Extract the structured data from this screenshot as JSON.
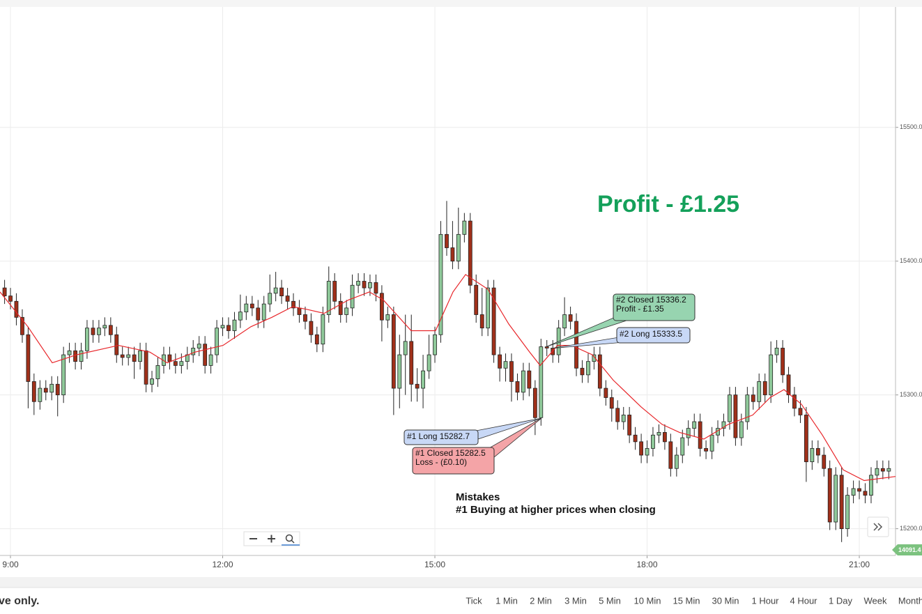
{
  "chart_data": {
    "type": "candlestick",
    "x": [
      8.917,
      9,
      9.083,
      9.167,
      9.25,
      9.333,
      9.417,
      9.5,
      9.583,
      9.667,
      9.75,
      9.833,
      9.917,
      10,
      10.083,
      10.167,
      10.25,
      10.333,
      10.417,
      10.5,
      10.583,
      10.667,
      10.75,
      10.833,
      10.917,
      11,
      11.083,
      11.167,
      11.25,
      11.333,
      11.417,
      11.5,
      11.583,
      11.667,
      11.75,
      11.833,
      11.917,
      12,
      12.083,
      12.167,
      12.25,
      12.333,
      12.417,
      12.5,
      12.583,
      12.667,
      12.75,
      12.833,
      12.917,
      13,
      13.083,
      13.167,
      13.25,
      13.333,
      13.417,
      13.5,
      13.583,
      13.667,
      13.75,
      13.833,
      13.917,
      14,
      14.083,
      14.167,
      14.25,
      14.333,
      14.417,
      14.5,
      14.583,
      14.667,
      14.75,
      14.833,
      14.917,
      15,
      15.083,
      15.167,
      15.25,
      15.333,
      15.417,
      15.5,
      15.583,
      15.667,
      15.75,
      15.833,
      15.917,
      16,
      16.083,
      16.167,
      16.25,
      16.333,
      16.417,
      16.5,
      16.583,
      16.667,
      16.75,
      16.833,
      16.917,
      17,
      17.083,
      17.167,
      17.25,
      17.333,
      17.417,
      17.5,
      17.583,
      17.667,
      17.75,
      17.833,
      17.917,
      18,
      18.083,
      18.167,
      18.25,
      18.333,
      18.417,
      18.5,
      18.583,
      18.667,
      18.75,
      18.833,
      18.917,
      19,
      19.083,
      19.167,
      19.25,
      19.333,
      19.417,
      19.5,
      19.583,
      19.667,
      19.75,
      19.833,
      19.917,
      20,
      20.083,
      20.167,
      20.25,
      20.333,
      20.417,
      20.5,
      20.583,
      20.667,
      20.75,
      20.833,
      20.917,
      21,
      21.083,
      21.167,
      21.25,
      21.333,
      21.417
    ],
    "open": [
      15380,
      15374,
      15370,
      15358,
      15345,
      15310,
      15295,
      15305,
      15302,
      15308,
      15300,
      15330,
      15333,
      15325,
      15333,
      15350,
      15345,
      15350,
      15352,
      15345,
      15330,
      15328,
      15330,
      15325,
      15333,
      15308,
      15312,
      15322,
      15330,
      15325,
      15322,
      15325,
      15330,
      15335,
      15338,
      15322,
      15330,
      15350,
      15352,
      15348,
      15356,
      15362,
      15368,
      15365,
      15356,
      15368,
      15376,
      15380,
      15374,
      15370,
      15365,
      15360,
      15355,
      15345,
      15338,
      15360,
      15385,
      15370,
      15360,
      15365,
      15382,
      15385,
      15380,
      15384,
      15376,
      15356,
      15360,
      15305,
      15330,
      15340,
      15308,
      15305,
      15318,
      15330,
      15345,
      15420,
      15410,
      15400,
      15420,
      15430,
      15382,
      15360,
      15350,
      15380,
      15330,
      15320,
      15325,
      15310,
      15302,
      15318,
      15305,
      15283,
      15336,
      15335,
      15330,
      15350,
      15360,
      15355,
      15320,
      15315,
      15325,
      15330,
      15305,
      15298,
      15290,
      15280,
      15285,
      15270,
      15265,
      15255,
      15260,
      15270,
      15272,
      15265,
      15245,
      15255,
      15268,
      15275,
      15280,
      15260,
      15258,
      15270,
      15275,
      15280,
      15300,
      15268,
      15280,
      15300,
      15295,
      15310,
      15300,
      15330,
      15335,
      15315,
      15300,
      15290,
      15285,
      15250,
      15260,
      15255,
      15245,
      15205,
      15240,
      15200,
      15225,
      15230,
      15228,
      15225,
      15240,
      15245,
      15243
    ],
    "high": [
      15386,
      15380,
      15376,
      15364,
      15351,
      15316,
      15311,
      15311,
      15314,
      15314,
      15336,
      15339,
      15339,
      15339,
      15356,
      15356,
      15356,
      15358,
      15358,
      15351,
      15336,
      15336,
      15336,
      15339,
      15339,
      15318,
      15328,
      15336,
      15336,
      15331,
      15331,
      15336,
      15341,
      15344,
      15344,
      15336,
      15356,
      15358,
      15358,
      15362,
      15375,
      15374,
      15374,
      15371,
      15374,
      15390,
      15392,
      15386,
      15380,
      15376,
      15371,
      15366,
      15361,
      15351,
      15366,
      15396,
      15391,
      15376,
      15371,
      15390,
      15391,
      15391,
      15390,
      15390,
      15382,
      15366,
      15366,
      15345,
      15360,
      15360,
      15320,
      15330,
      15345,
      15351,
      15430,
      15445,
      15430,
      15440,
      15436,
      15436,
      15390,
      15380,
      15386,
      15386,
      15336,
      15331,
      15331,
      15316,
      15324,
      15324,
      15311,
      15342,
      15341,
      15341,
      15356,
      15373,
      15366,
      15361,
      15326,
      15331,
      15336,
      15336,
      15311,
      15304,
      15296,
      15291,
      15291,
      15276,
      15271,
      15266,
      15276,
      15278,
      15278,
      15271,
      15261,
      15274,
      15281,
      15286,
      15286,
      15266,
      15276,
      15281,
      15286,
      15306,
      15306,
      15286,
      15306,
      15306,
      15316,
      15316,
      15340,
      15341,
      15341,
      15321,
      15306,
      15296,
      15291,
      15266,
      15266,
      15261,
      15251,
      15246,
      15246,
      15231,
      15236,
      15236,
      15234,
      15246,
      15251,
      15251,
      15251
    ],
    "low": [
      15368,
      15364,
      15352,
      15339,
      15290,
      15285,
      15289,
      15296,
      15296,
      15284,
      15294,
      15324,
      15319,
      15319,
      15327,
      15339,
      15339,
      15344,
      15339,
      15324,
      15322,
      15322,
      15312,
      15319,
      15302,
      15302,
      15306,
      15316,
      15319,
      15316,
      15316,
      15319,
      15324,
      15329,
      15316,
      15316,
      15324,
      15344,
      15342,
      15342,
      15350,
      15356,
      15359,
      15350,
      15350,
      15362,
      15370,
      15368,
      15364,
      15359,
      15354,
      15349,
      15339,
      15332,
      15332,
      15354,
      15364,
      15354,
      15354,
      15359,
      15376,
      15374,
      15374,
      15370,
      15340,
      15350,
      15285,
      15290,
      15300,
      15295,
      15295,
      15290,
      15312,
      15324,
      15339,
      15404,
      15394,
      15394,
      15414,
      15376,
      15354,
      15344,
      15344,
      15324,
      15310,
      15310,
      15295,
      15296,
      15296,
      15299,
      15270,
      15277,
      15329,
      15324,
      15324,
      15344,
      15349,
      15314,
      15309,
      15309,
      15319,
      15299,
      15292,
      15280,
      15274,
      15274,
      15264,
      15259,
      15249,
      15249,
      15254,
      15264,
      15259,
      15239,
      15239,
      15249,
      15262,
      15269,
      15254,
      15252,
      15252,
      15264,
      15269,
      15274,
      15262,
      15262,
      15274,
      15289,
      15289,
      15294,
      15294,
      15324,
      15309,
      15294,
      15284,
      15279,
      15235,
      15244,
      15249,
      15239,
      15199,
      15199,
      15190,
      15194,
      15219,
      15222,
      15219,
      15219,
      15234,
      15237,
      15237
    ],
    "close": [
      15374,
      15370,
      15358,
      15345,
      15310,
      15295,
      15305,
      15302,
      15308,
      15300,
      15330,
      15333,
      15325,
      15333,
      15350,
      15345,
      15350,
      15352,
      15345,
      15330,
      15328,
      15330,
      15325,
      15333,
      15308,
      15312,
      15322,
      15330,
      15325,
      15322,
      15325,
      15330,
      15335,
      15338,
      15322,
      15330,
      15350,
      15352,
      15348,
      15356,
      15362,
      15368,
      15365,
      15356,
      15368,
      15376,
      15380,
      15374,
      15370,
      15365,
      15360,
      15355,
      15345,
      15338,
      15360,
      15385,
      15370,
      15360,
      15365,
      15382,
      15385,
      15380,
      15384,
      15376,
      15356,
      15360,
      15305,
      15330,
      15340,
      15308,
      15305,
      15318,
      15330,
      15345,
      15420,
      15410,
      15400,
      15420,
      15430,
      15382,
      15360,
      15350,
      15380,
      15330,
      15320,
      15325,
      15310,
      15302,
      15318,
      15305,
      15283,
      15336,
      15335,
      15330,
      15350,
      15360,
      15355,
      15320,
      15315,
      15325,
      15330,
      15305,
      15298,
      15290,
      15280,
      15285,
      15270,
      15265,
      15255,
      15260,
      15270,
      15272,
      15265,
      15245,
      15255,
      15268,
      15275,
      15280,
      15260,
      15258,
      15270,
      15275,
      15280,
      15300,
      15268,
      15280,
      15300,
      15295,
      15310,
      15300,
      15330,
      15335,
      15315,
      15300,
      15290,
      15285,
      15250,
      15260,
      15255,
      15245,
      15205,
      15240,
      15200,
      15225,
      15230,
      15228,
      15225,
      15240,
      15245,
      15243,
      15245
    ],
    "up_color": "#8fc99a",
    "down_color": "#a0301a",
    "moving_average": {
      "color": "#e8262a",
      "x": [
        8.852,
        9.246,
        9.591,
        9.936,
        10.527,
        10.97,
        11.217,
        11.611,
        12.005,
        12.399,
        12.695,
        12.99,
        13.187,
        13.434,
        13.778,
        14.074,
        14.271,
        14.665,
        15.01,
        15.256,
        15.434,
        15.749,
        16.044,
        16.34,
        16.488,
        16.734,
        16.931,
        17.227,
        17.522,
        17.916,
        18.212,
        18.458,
        18.803,
        19.148,
        19.493,
        19.739,
        19.936,
        20.182,
        20.478,
        20.773,
        21.069,
        21.512
      ],
      "values": [
        15377,
        15351,
        15324,
        15330,
        15337,
        15332,
        15324,
        15332,
        15337,
        15351,
        15358,
        15366,
        15364,
        15361,
        15371,
        15377,
        15371,
        15348,
        15348,
        15377,
        15390,
        15379,
        15353,
        15332,
        15322,
        15337,
        15337,
        15330,
        15311,
        15291,
        15278,
        15272,
        15267,
        15278,
        15285,
        15298,
        15304,
        15293,
        15270,
        15244,
        15236,
        15239
      ]
    },
    "xlim": [
      8.852,
      21.512
    ],
    "ylim": [
      15180,
      15590
    ],
    "xticks": [
      {
        "value": 9,
        "label": "9:00"
      },
      {
        "value": 12,
        "label": "12:00"
      },
      {
        "value": 15,
        "label": "15:00"
      },
      {
        "value": 18,
        "label": "18:00"
      },
      {
        "value": 21,
        "label": "21:00"
      }
    ],
    "yticks": [
      {
        "value": 15200,
        "label": "15200.0"
      },
      {
        "value": 15300,
        "label": "15300.0"
      },
      {
        "value": 15400,
        "label": "15400.0"
      },
      {
        "value": 15500,
        "label": "15500.0"
      }
    ],
    "grid": true,
    "headline": "Profit - £1.25",
    "annotations": {
      "close2": [
        "#2 Closed 15336.2",
        "Profit - £1.35"
      ],
      "long2": "#2 Long 15333.5",
      "long1": "#1 Long 15282.7",
      "close1": [
        "#1 Closed 15282.5",
        "Loss - (£0.10)"
      ]
    },
    "note": [
      "Mistakes",
      "#1  Buying at higher prices when closing"
    ],
    "price_badge": "14091.4"
  },
  "footer_text": "ve only.",
  "timeframes": [
    "Tick",
    "1 Min",
    "2 Min",
    "3 Min",
    "5 Min",
    "10 Min",
    "15 Min",
    "30 Min",
    "1 Hour",
    "4 Hour",
    "1 Day",
    "Week",
    "Month"
  ]
}
